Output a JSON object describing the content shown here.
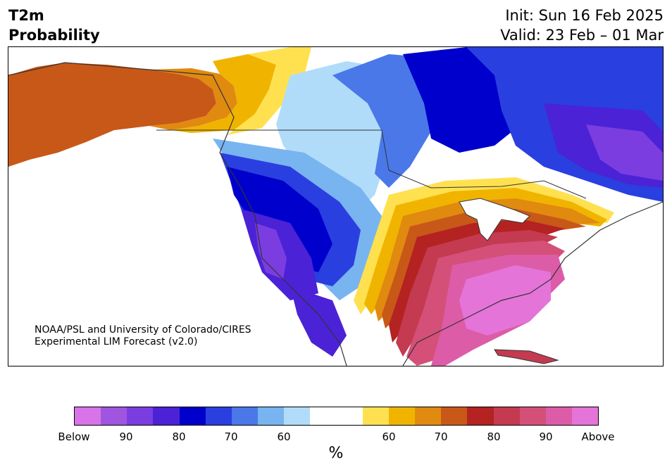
{
  "header": {
    "title_line1": "T2m",
    "title_line2": "Probability",
    "init_text": "Init: Sun 16 Feb 2025",
    "valid_text": "Valid: 23 Feb – 01 Mar"
  },
  "credit": {
    "line1": "NOAA/PSL and University of Colorado/CIRES",
    "line2": "Experimental LIM Forecast (v2.0)"
  },
  "colorbar": {
    "unit": "%",
    "tick_labels": [
      "Below",
      "90",
      "80",
      "70",
      "60",
      "60",
      "70",
      "80",
      "90",
      "Above"
    ],
    "colors": [
      "#d874e8",
      "#9f55e0",
      "#7b3de0",
      "#4b22d6",
      "#0000cc",
      "#2a3fe0",
      "#4a78e8",
      "#78b4f0",
      "#b0dcfa",
      "#ffffff",
      "#ffffff",
      "#ffe150",
      "#f0b400",
      "#e08a10",
      "#c85818",
      "#b42222",
      "#c43a50",
      "#d45078",
      "#dc5ca8",
      "#e474d8"
    ]
  },
  "map": {
    "region": "North America",
    "colors": {
      "cold_strong": "#0000cc",
      "cold": "#2a3fe0",
      "cool": "#4a78e8",
      "cool_light": "#78b4f0",
      "cool_faint": "#b0dcfa",
      "purple": "#4b22d6",
      "violet": "#7b3de0",
      "warm_faint": "#ffe150",
      "warm": "#f0b400",
      "warm_orange": "#e08a10",
      "rust": "#c85818",
      "red": "#b42222",
      "crimson": "#c43a50",
      "rose": "#d45078",
      "pink": "#dc5ca8",
      "magenta": "#e474d8"
    }
  }
}
